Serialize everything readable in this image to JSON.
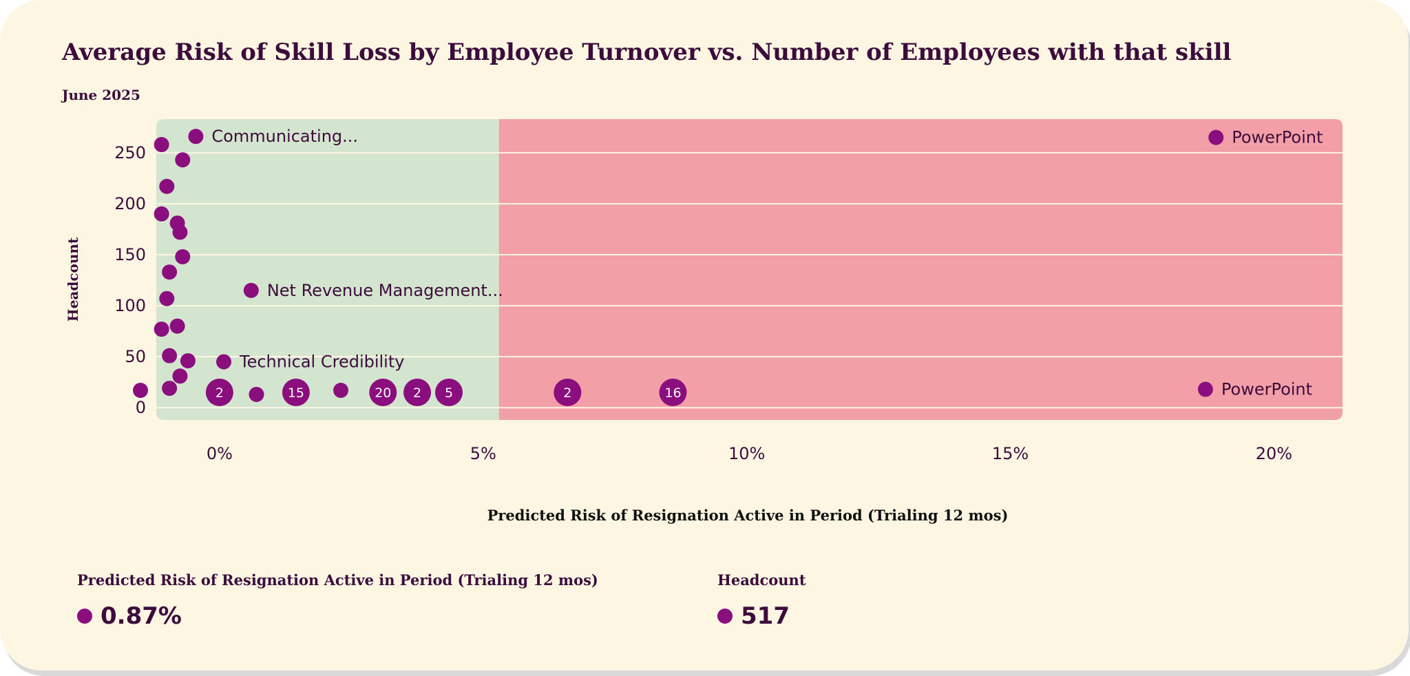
{
  "title": "Average Risk of Skill Loss by Employee Turnover vs. Number of Employees with that skill",
  "subtitle": "June 2025",
  "chart_data": {
    "type": "scatter",
    "title": "Average Risk of Skill Loss by Employee Turnover vs. Number of Employees with that skill",
    "xlabel": "Predicted Risk of Resignation Active in Period (Trialing 12 mos)",
    "ylabel": "Headcount",
    "xlim": [
      -1.2,
      21.3
    ],
    "ylim": [
      -12,
      283
    ],
    "x_ticks": [
      0,
      5,
      10,
      15,
      20
    ],
    "x_tick_labels": [
      "0%",
      "5%",
      "10%",
      "15%",
      "20%"
    ],
    "y_ticks": [
      0,
      50,
      100,
      150,
      200,
      250
    ],
    "y_tick_labels": [
      "0",
      "50",
      "100",
      "150",
      "200",
      "250"
    ],
    "zones": [
      {
        "name": "low-risk",
        "x_from": -1.2,
        "x_to": 5.3,
        "color": "#d4e5cf"
      },
      {
        "name": "high-risk",
        "x_from": 5.3,
        "x_to": 21.3,
        "color": "#f29fa8"
      }
    ],
    "point_color": "#8b0e7e",
    "points": [
      {
        "x": -1.5,
        "y": 17
      },
      {
        "x": -1.1,
        "y": 258
      },
      {
        "x": -0.7,
        "y": 243
      },
      {
        "x": -1.0,
        "y": 217
      },
      {
        "x": -1.1,
        "y": 190
      },
      {
        "x": -0.8,
        "y": 181
      },
      {
        "x": -0.75,
        "y": 172
      },
      {
        "x": -0.7,
        "y": 148
      },
      {
        "x": -0.95,
        "y": 133
      },
      {
        "x": -1.0,
        "y": 107
      },
      {
        "x": -1.1,
        "y": 77
      },
      {
        "x": -0.8,
        "y": 80
      },
      {
        "x": -0.95,
        "y": 51
      },
      {
        "x": -0.6,
        "y": 46
      },
      {
        "x": -0.75,
        "y": 31
      },
      {
        "x": -0.95,
        "y": 19
      },
      {
        "x": -0.45,
        "y": 266,
        "label": "Communicating..."
      },
      {
        "x": 0.6,
        "y": 115,
        "label": "Net Revenue Management..."
      },
      {
        "x": 0.08,
        "y": 45,
        "label": "Technical Credibility"
      },
      {
        "x": 0.0,
        "y": 15,
        "count": "2"
      },
      {
        "x": 0.7,
        "y": 13
      },
      {
        "x": 1.45,
        "y": 15,
        "count": "15"
      },
      {
        "x": 2.3,
        "y": 17
      },
      {
        "x": 3.1,
        "y": 15,
        "count": "20"
      },
      {
        "x": 3.75,
        "y": 15,
        "count": "2"
      },
      {
        "x": 4.35,
        "y": 15,
        "count": "5"
      },
      {
        "x": 6.6,
        "y": 15,
        "count": "2"
      },
      {
        "x": 8.6,
        "y": 15,
        "count": "16"
      },
      {
        "x": 18.9,
        "y": 265,
        "label": "PowerPoint"
      },
      {
        "x": 18.7,
        "y": 18,
        "label": "PowerPoint"
      }
    ]
  },
  "kpis": [
    {
      "label": "Predicted Risk of Resignation Active in Period (Trialing 12 mos)",
      "value": "0.87%"
    },
    {
      "label": "Headcount",
      "value": "517"
    }
  ]
}
